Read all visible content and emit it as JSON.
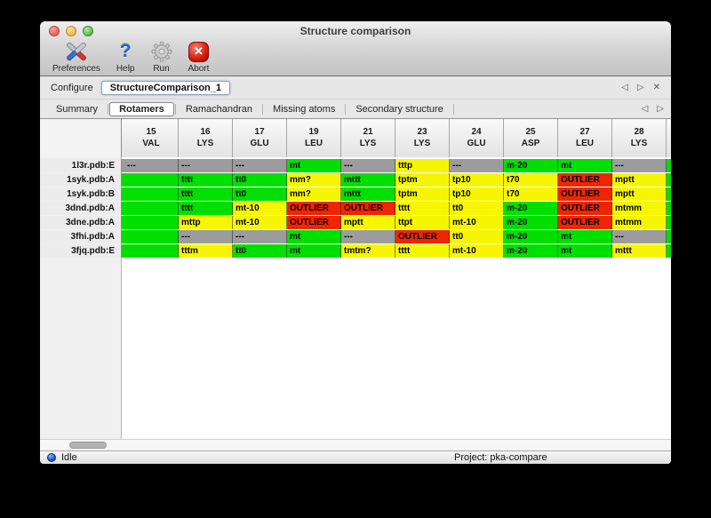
{
  "window": {
    "title": "Structure comparison"
  },
  "icons": {
    "help": "?",
    "abort": "✕",
    "prev": "◁",
    "next": "▷",
    "close": "✕"
  },
  "toolbar": {
    "items": [
      {
        "label": "Preferences",
        "icon": "tools-icon"
      },
      {
        "label": "Help",
        "icon": "help-icon"
      },
      {
        "label": "Run",
        "icon": "gear-icon"
      },
      {
        "label": "Abort",
        "icon": "abort-icon"
      }
    ]
  },
  "configure": {
    "label": "Configure",
    "value": "StructureComparison_1"
  },
  "tabs": {
    "items": [
      "Summary",
      "Rotamers",
      "Ramachandran",
      "Missing atoms",
      "Secondary structure"
    ],
    "active": "Rotamers"
  },
  "colors": {
    "green": "#00e000",
    "yellow": "#f6f600",
    "red": "#ee2600",
    "gray": "#9c9c9c"
  },
  "table": {
    "columns": [
      {
        "num": "15",
        "res": "VAL"
      },
      {
        "num": "16",
        "res": "LYS"
      },
      {
        "num": "17",
        "res": "GLU"
      },
      {
        "num": "19",
        "res": "LEU"
      },
      {
        "num": "21",
        "res": "LYS"
      },
      {
        "num": "23",
        "res": "LYS"
      },
      {
        "num": "24",
        "res": "GLU"
      },
      {
        "num": "25",
        "res": "ASP"
      },
      {
        "num": "27",
        "res": "LEU"
      },
      {
        "num": "28",
        "res": "LYS"
      }
    ],
    "rows": [
      {
        "label": "1l3r.pdb:E",
        "edge_left": "gray",
        "edge_right": "green",
        "cells": [
          [
            "---",
            "gray"
          ],
          [
            "---",
            "gray"
          ],
          [
            "---",
            "gray"
          ],
          [
            "mt",
            "green"
          ],
          [
            "---",
            "gray"
          ],
          [
            "tttp",
            "yellow"
          ],
          [
            "---",
            "gray"
          ],
          [
            "m-20",
            "green"
          ],
          [
            "mt",
            "green"
          ],
          [
            "---",
            "gray"
          ]
        ]
      },
      {
        "label": "1syk.pdb:A",
        "edge_left": "green",
        "edge_right": "green",
        "cells": [
          [
            "",
            "green"
          ],
          [
            "tttt",
            "green"
          ],
          [
            "tt0",
            "green"
          ],
          [
            "mm?",
            "yellow"
          ],
          [
            "mttt",
            "green"
          ],
          [
            "tptm",
            "yellow"
          ],
          [
            "tp10",
            "yellow"
          ],
          [
            "t70",
            "yellow"
          ],
          [
            "OUTLIER",
            "red"
          ],
          [
            "mptt",
            "yellow"
          ]
        ]
      },
      {
        "label": "1syk.pdb:B",
        "edge_left": "green",
        "edge_right": "green",
        "cells": [
          [
            "",
            "green"
          ],
          [
            "tttt",
            "green"
          ],
          [
            "tt0",
            "green"
          ],
          [
            "mm?",
            "yellow"
          ],
          [
            "mttt",
            "green"
          ],
          [
            "tptm",
            "yellow"
          ],
          [
            "tp10",
            "yellow"
          ],
          [
            "t70",
            "yellow"
          ],
          [
            "OUTLIER",
            "red"
          ],
          [
            "mptt",
            "yellow"
          ]
        ]
      },
      {
        "label": "3dnd.pdb:A",
        "edge_left": "green",
        "edge_right": "green",
        "cells": [
          [
            "",
            "green"
          ],
          [
            "tttt",
            "green"
          ],
          [
            "mt-10",
            "yellow"
          ],
          [
            "OUTLIER",
            "red"
          ],
          [
            "OUTLIER",
            "red"
          ],
          [
            "tttt",
            "yellow"
          ],
          [
            "tt0",
            "yellow"
          ],
          [
            "m-20",
            "green"
          ],
          [
            "OUTLIER",
            "red"
          ],
          [
            "mtmm",
            "yellow"
          ]
        ]
      },
      {
        "label": "3dne.pdb:A",
        "edge_left": "green",
        "edge_right": "green",
        "cells": [
          [
            "",
            "green"
          ],
          [
            "mttp",
            "yellow"
          ],
          [
            "mt-10",
            "yellow"
          ],
          [
            "OUTLIER",
            "red"
          ],
          [
            "mptt",
            "yellow"
          ],
          [
            "ttpt",
            "yellow"
          ],
          [
            "mt-10",
            "yellow"
          ],
          [
            "m-20",
            "green"
          ],
          [
            "OUTLIER",
            "red"
          ],
          [
            "mtmm",
            "yellow"
          ]
        ]
      },
      {
        "label": "3fhi.pdb:A",
        "edge_left": "green",
        "edge_right": "green",
        "cells": [
          [
            "",
            "green"
          ],
          [
            "---",
            "gray"
          ],
          [
            "---",
            "gray"
          ],
          [
            "mt",
            "green"
          ],
          [
            "---",
            "gray"
          ],
          [
            "OUTLIER",
            "red"
          ],
          [
            "tt0",
            "yellow"
          ],
          [
            "m-20",
            "green"
          ],
          [
            "mt",
            "green"
          ],
          [
            "---",
            "gray"
          ]
        ]
      },
      {
        "label": "3fjq.pdb:E",
        "edge_left": "green",
        "edge_right": "green",
        "cells": [
          [
            "",
            "green"
          ],
          [
            "tttm",
            "yellow"
          ],
          [
            "tt0",
            "green"
          ],
          [
            "mt",
            "green"
          ],
          [
            "tmtm?",
            "yellow"
          ],
          [
            "tttt",
            "yellow"
          ],
          [
            "mt-10",
            "yellow"
          ],
          [
            "m-20",
            "green"
          ],
          [
            "mt",
            "green"
          ],
          [
            "mttt",
            "yellow"
          ]
        ]
      }
    ]
  },
  "statusbar": {
    "status": "Idle",
    "project": "Project: pka-compare"
  }
}
